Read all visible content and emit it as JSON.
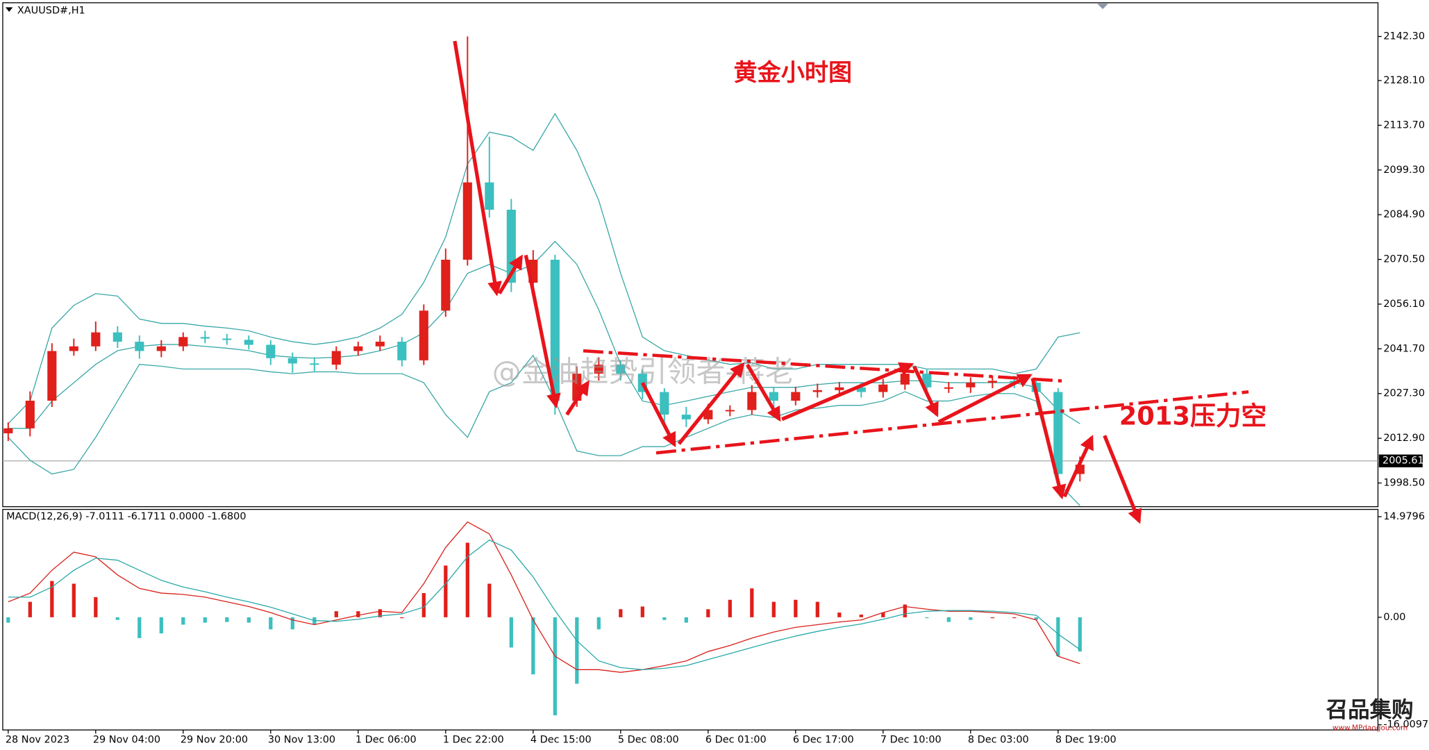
{
  "chart_data": [
    {
      "type": "candlestick",
      "title": "XAUUSD#,H1",
      "annotations": [
        "黄金小时图",
        "2013压力空"
      ],
      "watermark": "@金油趋势引领者-蒋老",
      "x": [
        0,
        4,
        8,
        12,
        16,
        20,
        24,
        28,
        32,
        36,
        40,
        44,
        48,
        52,
        56,
        60,
        64,
        68,
        72,
        76,
        80,
        84,
        88,
        92,
        96,
        100,
        104,
        108,
        112,
        116,
        120,
        124,
        128,
        132,
        136,
        140,
        144,
        148,
        152,
        156,
        160,
        164,
        168,
        172,
        176,
        180,
        184,
        188,
        192,
        196
      ],
      "open": [
        2014.5,
        2016.1,
        2025,
        2041,
        2042.5,
        2047,
        2044,
        2041,
        2042.5,
        2045.5,
        2045,
        2044.6,
        2043,
        2038.7,
        2037,
        2036.6,
        2041,
        2042.5,
        2044,
        2038,
        2054,
        2070.4,
        2095.3,
        2086.5,
        2063,
        2070.4,
        2025,
        2033.7,
        2036.6,
        2033.7,
        2027.8,
        2020.5,
        2019,
        2022,
        2022,
        2027.8,
        2025,
        2027.8,
        2028.4,
        2029.3,
        2027.8,
        2030.2,
        2033.7,
        2029.3,
        2029.3,
        2030.8,
        2031.4,
        2030.8,
        2027.8,
        2001.4
      ],
      "high": [
        2018,
        2028,
        2043.5,
        2045,
        2050.5,
        2049,
        2046,
        2044.5,
        2047,
        2047.5,
        2046.5,
        2046,
        2044.5,
        2040.5,
        2039,
        2042.5,
        2044,
        2046,
        2045.5,
        2056,
        2074,
        2142.3,
        2110,
        2090,
        2073.5,
        2072,
        2036,
        2039,
        2038,
        2035,
        2029,
        2023,
        2024,
        2023.5,
        2030,
        2029.5,
        2029.5,
        2030.5,
        2031,
        2031,
        2032,
        2036,
        2035,
        2031,
        2032.5,
        2033,
        2033,
        2032,
        2029,
        2007
      ],
      "low": [
        2012,
        2013.5,
        2023,
        2039.5,
        2041,
        2042,
        2038.5,
        2039,
        2041,
        2043.5,
        2043,
        2041.5,
        2036.5,
        2034,
        2034.5,
        2035,
        2039.5,
        2041,
        2036,
        2036.5,
        2052,
        2068.5,
        2084,
        2060,
        2061.5,
        2020.5,
        2023,
        2031.5,
        2031.5,
        2025.5,
        2017,
        2016.5,
        2017.5,
        2020,
        2020.5,
        2023,
        2023.5,
        2026,
        2026.5,
        2026,
        2026,
        2028.5,
        2027.5,
        2027.5,
        2027.5,
        2029,
        2029,
        2026,
        1998,
        1999
      ],
      "close": [
        2016.1,
        2025,
        2041,
        2042.5,
        2047,
        2044,
        2041,
        2042.5,
        2045.5,
        2045,
        2044.6,
        2043,
        2038.7,
        2037,
        2036.6,
        2041,
        2042.5,
        2044,
        2038,
        2054,
        2070.4,
        2095.3,
        2086.5,
        2063,
        2070.4,
        2025,
        2033.7,
        2036.6,
        2033.7,
        2027.8,
        2020.5,
        2019,
        2022,
        2022,
        2027.8,
        2025,
        2027.8,
        2028.4,
        2029.3,
        2027.8,
        2030.2,
        2033.7,
        2029.3,
        2029.3,
        2030.8,
        2031.4,
        2030.8,
        2027.8,
        2001.4,
        2004.4
      ],
      "up_color": "#e0201b",
      "down_color": "#3cbfbf",
      "bands": {
        "color": "#3aa7a7",
        "upper": [
          2017.6,
          2024.9,
          2048.4,
          2055.7,
          2059.5,
          2058.7,
          2051.3,
          2049.9,
          2049.9,
          2049.0,
          2048.4,
          2047.5,
          2045.5,
          2044.0,
          2043.1,
          2044.0,
          2045.5,
          2048.4,
          2052.8,
          2063.1,
          2077.7,
          2101.2,
          2111.5,
          2110.0,
          2105.6,
          2117.4,
          2105.6,
          2089.5,
          2066.0,
          2045.5,
          2041.1,
          2039.6,
          2038.1,
          2036.7,
          2037.2,
          2035.2,
          2035.2,
          2036.7,
          2036.7,
          2036.7,
          2036.7,
          2036.7,
          2035.2,
          2035.2,
          2035.2,
          2035.2,
          2033.7,
          2035.2,
          2045.5,
          2046.9
        ],
        "middle": [
          2016.1,
          2016.1,
          2024.9,
          2030.8,
          2036.7,
          2041.1,
          2042.5,
          2043.1,
          2043.1,
          2042.5,
          2041.9,
          2041.1,
          2039.6,
          2039.0,
          2038.7,
          2039.0,
          2039.6,
          2041.1,
          2043.1,
          2046.9,
          2054.3,
          2066.0,
          2068.9,
          2066.0,
          2068.9,
          2076.3,
          2068.9,
          2054.3,
          2036.7,
          2024.9,
          2023.5,
          2024.9,
          2026.4,
          2027.9,
          2029.3,
          2029.3,
          2029.3,
          2030.2,
          2030.8,
          2030.8,
          2030.8,
          2031.4,
          2031.4,
          2030.8,
          2030.8,
          2030.8,
          2030.8,
          2029.3,
          2022.0,
          2017.6
        ],
        "lower": [
          2013.2,
          2005.8,
          2001.4,
          2002.9,
          2013.2,
          2024.9,
          2036.7,
          2036.1,
          2035.2,
          2035.2,
          2035.2,
          2035.2,
          2034.3,
          2033.7,
          2034.3,
          2034.3,
          2033.7,
          2033.7,
          2033.7,
          2030.8,
          2020.5,
          2013.2,
          2027.9,
          2030.8,
          2039.6,
          2024.9,
          2008.8,
          2007.3,
          2007.3,
          2010.2,
          2010.2,
          2013.2,
          2016.1,
          2019.0,
          2020.5,
          2019.6,
          2022.0,
          2022.6,
          2023.5,
          2023.5,
          2024.9,
          2027.9,
          2024.9,
          2024.9,
          2026.4,
          2027.3,
          2027.3,
          2024.9,
          1998.5,
          1991.2
        ]
      },
      "last_price": 2005.61,
      "xlim": [
        -1,
        250.5
      ],
      "xticks": [
        {
          "value": 0,
          "label": "28 Nov 2023"
        },
        {
          "value": 16,
          "label": "29 Nov 04:00"
        },
        {
          "value": 32,
          "label": "29 Nov 20:00"
        },
        {
          "value": 48,
          "label": "30 Nov 13:00"
        },
        {
          "value": 64,
          "label": "1 Dec 06:00"
        },
        {
          "value": 80,
          "label": "1 Dec 22:00"
        },
        {
          "value": 96,
          "label": "4 Dec 15:00"
        },
        {
          "value": 112,
          "label": "5 Dec 08:00"
        },
        {
          "value": 128,
          "label": "6 Dec 01:00"
        },
        {
          "value": 144,
          "label": "6 Dec 17:00"
        },
        {
          "value": 160,
          "label": "7 Dec 10:00"
        },
        {
          "value": 176,
          "label": "8 Dec 03:00"
        },
        {
          "value": 192,
          "label": "8 Dec 19:00"
        }
      ],
      "ylim": [
        1990.87,
        2153.16
      ],
      "yticks": [
        {
          "value": 2142.3,
          "label": "2142.30"
        },
        {
          "value": 2128.1,
          "label": "2128.10"
        },
        {
          "value": 2113.7,
          "label": "2113.70"
        },
        {
          "value": 2099.3,
          "label": "2099.30"
        },
        {
          "value": 2084.9,
          "label": "2084.90"
        },
        {
          "value": 2070.5,
          "label": "2070.50"
        },
        {
          "value": 2056.1,
          "label": "2056.10"
        },
        {
          "value": 2041.7,
          "label": "2041.70"
        },
        {
          "value": 2027.3,
          "label": "2027.30"
        },
        {
          "value": 2012.9,
          "label": "2012.90"
        },
        {
          "value": 1998.5,
          "label": "1998.50"
        }
      ]
    },
    {
      "type": "macd",
      "title": "MACD(12,26,9) -7.0111 -6.1711 0.0000 -1.6800",
      "histogram": [
        -0.8,
        2.3,
        5.4,
        5,
        3,
        -0.4,
        -3.1,
        -2.4,
        -1.1,
        -0.8,
        -0.7,
        -0.8,
        -1.8,
        -1.8,
        -1.1,
        0.9,
        0.9,
        1.2,
        0,
        3.6,
        7.7,
        11.1,
        5,
        -4.5,
        -8.5,
        -14.6,
        -9.9,
        -1.8,
        1.2,
        1.6,
        -0.4,
        -0.8,
        1.2,
        2.6,
        4.3,
        2.3,
        2.6,
        2.3,
        0.7,
        0.4,
        0.7,
        1.9,
        -0.1,
        -0.7,
        -0.4,
        0,
        0,
        -0.4,
        -5.8,
        -5.1
      ],
      "macd": [
        2.3,
        3.6,
        7.0,
        9.7,
        9.0,
        6.3,
        4.3,
        3.6,
        3.4,
        3.0,
        2.3,
        1.6,
        0.7,
        -0.4,
        -1.1,
        -0.4,
        0.3,
        0.9,
        0.7,
        5.0,
        10.4,
        14.2,
        12.4,
        6.3,
        -0.4,
        -5.8,
        -7.8,
        -7.8,
        -8.2,
        -7.8,
        -7.2,
        -6.5,
        -5.1,
        -4.2,
        -3.1,
        -2.2,
        -1.5,
        -1.1,
        -0.7,
        -0.4,
        0.7,
        1.6,
        1.2,
        0.9,
        0.9,
        0.7,
        0.5,
        -0.4,
        -5.8,
        -6.9
      ],
      "signal": [
        3.0,
        3.0,
        4.5,
        7.0,
        8.8,
        8.5,
        7.0,
        5.5,
        4.5,
        3.8,
        3.0,
        2.3,
        1.5,
        0.5,
        -0.5,
        -0.6,
        -0.3,
        0.2,
        0.5,
        1.5,
        5.0,
        9.0,
        11.5,
        10.0,
        6.0,
        1.0,
        -3.5,
        -6.5,
        -7.5,
        -7.8,
        -7.6,
        -7.2,
        -6.3,
        -5.4,
        -4.5,
        -3.6,
        -2.8,
        -2.1,
        -1.5,
        -1.0,
        -0.3,
        0.5,
        0.9,
        1.0,
        1.0,
        0.9,
        0.7,
        0.3,
        -2.5,
        -4.8
      ],
      "macd_color": "#d8201b",
      "signal_color": "#2aa8a8",
      "positive_color": "#e0201b",
      "negative_color": "#3cbfbf",
      "ylim": [
        -16.78,
        16.06
      ],
      "yticks": [
        14.9796,
        {
          "value": 0,
          "label": "0.00"
        },
        -16.0097
      ]
    }
  ],
  "logo": {
    "name": "召品集购",
    "url": "www.MPdaogou.com"
  }
}
